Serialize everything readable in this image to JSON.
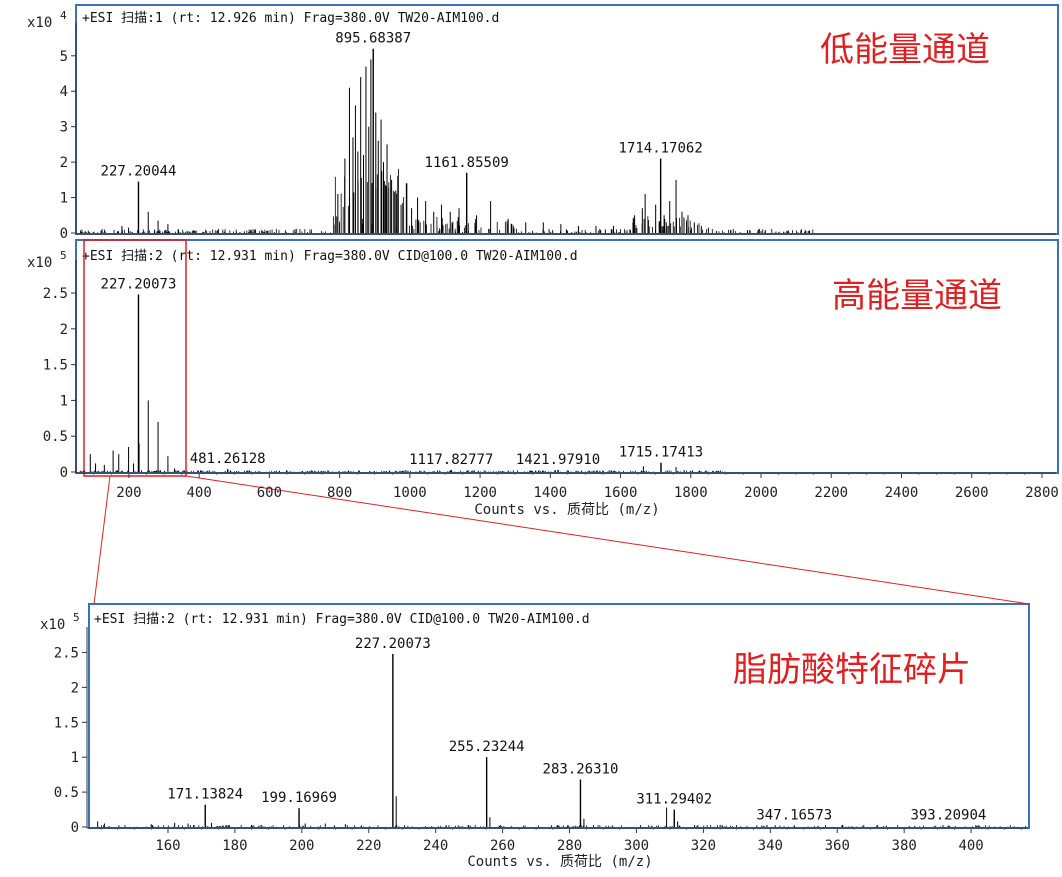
{
  "chart_data": [
    {
      "type": "bar",
      "panel": "low-energy",
      "header": "+ESI 扫描:1 (rt: 12.926 min) Frag=380.0V TW20-AIM100.d",
      "y_scale_label": "x10",
      "y_scale_exp": "4",
      "callout": "低能量通道",
      "xlim": [
        55,
        2840
      ],
      "ylim": [
        0,
        5.7
      ],
      "yticks": [
        "0",
        "1",
        "2",
        "3",
        "4",
        "5"
      ],
      "xticks": [],
      "xlabel": "",
      "major_peaks": [
        {
          "x": 227.20044,
          "y": 1.45,
          "label": "227.20044"
        },
        {
          "x": 895.68387,
          "y": 5.2,
          "label": "895.68387"
        },
        {
          "x": 1161.85509,
          "y": 1.7,
          "label": "1161.85509"
        },
        {
          "x": 1714.17062,
          "y": 2.1,
          "label": "1714.17062"
        }
      ],
      "minor_peaks": [
        {
          "x": 180,
          "y": 0.2
        },
        {
          "x": 199,
          "y": 0.15
        },
        {
          "x": 255,
          "y": 0.6
        },
        {
          "x": 283,
          "y": 0.35
        },
        {
          "x": 311,
          "y": 0.25
        },
        {
          "x": 795,
          "y": 1.1
        },
        {
          "x": 815,
          "y": 2.1
        },
        {
          "x": 828,
          "y": 4.1
        },
        {
          "x": 838,
          "y": 2.7
        },
        {
          "x": 845,
          "y": 3.6
        },
        {
          "x": 852,
          "y": 2.3
        },
        {
          "x": 860,
          "y": 4.4
        },
        {
          "x": 868,
          "y": 2.2
        },
        {
          "x": 875,
          "y": 4.7
        },
        {
          "x": 883,
          "y": 3.0
        },
        {
          "x": 889,
          "y": 4.9
        },
        {
          "x": 903,
          "y": 3.4
        },
        {
          "x": 910,
          "y": 2.6
        },
        {
          "x": 918,
          "y": 3.2
        },
        {
          "x": 925,
          "y": 2.0
        },
        {
          "x": 935,
          "y": 2.5
        },
        {
          "x": 948,
          "y": 1.5
        },
        {
          "x": 960,
          "y": 1.2
        },
        {
          "x": 975,
          "y": 0.8
        },
        {
          "x": 990,
          "y": 1.4
        },
        {
          "x": 1005,
          "y": 0.7
        },
        {
          "x": 1022,
          "y": 1.0
        },
        {
          "x": 1045,
          "y": 0.9
        },
        {
          "x": 1068,
          "y": 0.6
        },
        {
          "x": 1090,
          "y": 0.8
        },
        {
          "x": 1115,
          "y": 0.6
        },
        {
          "x": 1140,
          "y": 0.7
        },
        {
          "x": 1190,
          "y": 0.5
        },
        {
          "x": 1230,
          "y": 0.9
        },
        {
          "x": 1280,
          "y": 0.4
        },
        {
          "x": 1330,
          "y": 0.3
        },
        {
          "x": 1380,
          "y": 0.3
        },
        {
          "x": 1430,
          "y": 0.25
        },
        {
          "x": 1480,
          "y": 0.2
        },
        {
          "x": 1530,
          "y": 0.2
        },
        {
          "x": 1580,
          "y": 0.2
        },
        {
          "x": 1640,
          "y": 0.5
        },
        {
          "x": 1662,
          "y": 0.7
        },
        {
          "x": 1670,
          "y": 1.1
        },
        {
          "x": 1700,
          "y": 0.8
        },
        {
          "x": 1724,
          "y": 0.5
        },
        {
          "x": 1740,
          "y": 0.9
        },
        {
          "x": 1758,
          "y": 1.5
        },
        {
          "x": 1775,
          "y": 0.6
        },
        {
          "x": 1792,
          "y": 0.5
        },
        {
          "x": 1810,
          "y": 0.3
        },
        {
          "x": 1830,
          "y": 0.2
        },
        {
          "x": 1850,
          "y": 0.15
        }
      ]
    },
    {
      "type": "bar",
      "panel": "high-energy",
      "header": "+ESI 扫描:2 (rt: 12.931 min) Frag=380.0V CID@100.0 TW20-AIM100.d",
      "y_scale_label": "x10",
      "y_scale_exp": "5",
      "callout": "高能量通道",
      "xlim": [
        55,
        2840
      ],
      "ylim": [
        0,
        2.85
      ],
      "yticks": [
        "0",
        "0.5",
        "1",
        "1.5",
        "2",
        "2.5"
      ],
      "xticks": [
        "200",
        "400",
        "600",
        "800",
        "1000",
        "1200",
        "1400",
        "1600",
        "1800",
        "2000",
        "2200",
        "2400",
        "2600",
        "2800"
      ],
      "xlabel": "Counts vs. 质荷比 (m/z)",
      "major_peaks": [
        {
          "x": 227.20073,
          "y": 2.48,
          "label": "227.20073"
        },
        {
          "x": 481.26128,
          "y": 0.04,
          "label": "481.26128"
        },
        {
          "x": 1117.82777,
          "y": 0.03,
          "label": "1117.82777"
        },
        {
          "x": 1421.9791,
          "y": 0.03,
          "label": "1421.97910"
        },
        {
          "x": 1715.17413,
          "y": 0.13,
          "label": "1715.17413"
        }
      ],
      "minor_peaks": [
        {
          "x": 90,
          "y": 0.25
        },
        {
          "x": 105,
          "y": 0.12
        },
        {
          "x": 130,
          "y": 0.1
        },
        {
          "x": 155,
          "y": 0.3
        },
        {
          "x": 171,
          "y": 0.25
        },
        {
          "x": 199,
          "y": 0.35
        },
        {
          "x": 213,
          "y": 0.12
        },
        {
          "x": 229,
          "y": 0.4
        },
        {
          "x": 255,
          "y": 1.0
        },
        {
          "x": 283,
          "y": 0.7
        },
        {
          "x": 311,
          "y": 0.22
        },
        {
          "x": 330,
          "y": 0.05
        },
        {
          "x": 1665,
          "y": 0.08
        },
        {
          "x": 1758,
          "y": 0.07
        }
      ]
    },
    {
      "type": "bar",
      "panel": "zoom",
      "header": "+ESI 扫描:2 (rt: 12.931 min) Frag=380.0V CID@100.0 TW20-AIM100.d",
      "y_scale_label": "x10",
      "y_scale_exp": "5",
      "callout": "脂肪酸特征碎片",
      "xlim": [
        137,
        417
      ],
      "ylim": [
        0,
        2.75
      ],
      "yticks": [
        "0",
        "0.5",
        "1",
        "1.5",
        "2",
        "2.5"
      ],
      "xticks": [
        "160",
        "180",
        "200",
        "220",
        "240",
        "260",
        "280",
        "300",
        "320",
        "340",
        "360",
        "380",
        "400"
      ],
      "xlabel": "Counts vs. 质荷比 (m/z)",
      "major_peaks": [
        {
          "x": 171.13824,
          "y": 0.32,
          "label": "171.13824"
        },
        {
          "x": 199.16969,
          "y": 0.27,
          "label": "199.16969"
        },
        {
          "x": 227.20073,
          "y": 2.48,
          "label": "227.20073"
        },
        {
          "x": 255.23244,
          "y": 1.0,
          "label": "255.23244"
        },
        {
          "x": 283.2631,
          "y": 0.68,
          "label": "283.26310"
        },
        {
          "x": 311.29402,
          "y": 0.25,
          "label": "311.29402"
        },
        {
          "x": 347.16573,
          "y": 0.02,
          "label": "347.16573"
        },
        {
          "x": 393.20904,
          "y": 0.02,
          "label": "393.20904"
        }
      ],
      "minor_peaks": [
        {
          "x": 139,
          "y": 0.08
        },
        {
          "x": 141,
          "y": 0.05
        },
        {
          "x": 155,
          "y": 0.04
        },
        {
          "x": 162,
          "y": 0.06
        },
        {
          "x": 166,
          "y": 0.05
        },
        {
          "x": 173,
          "y": 0.06
        },
        {
          "x": 185,
          "y": 0.03
        },
        {
          "x": 201,
          "y": 0.05
        },
        {
          "x": 207,
          "y": 0.05
        },
        {
          "x": 213,
          "y": 0.04
        },
        {
          "x": 228.2,
          "y": 0.44
        },
        {
          "x": 256.2,
          "y": 0.14
        },
        {
          "x": 284.3,
          "y": 0.12
        },
        {
          "x": 309,
          "y": 0.28
        },
        {
          "x": 312.3,
          "y": 0.08
        },
        {
          "x": 325,
          "y": 0.03
        },
        {
          "x": 339,
          "y": 0.03
        }
      ]
    }
  ]
}
